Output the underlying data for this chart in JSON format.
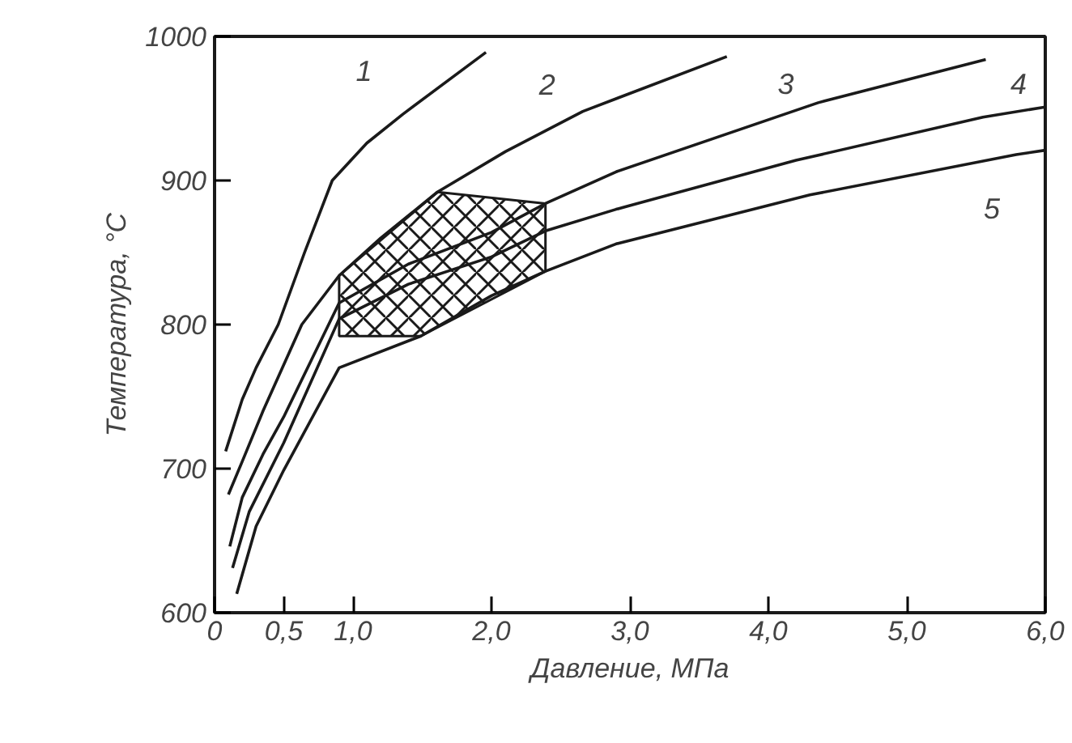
{
  "chart_data": {
    "type": "line",
    "xlabel": "Давление, МПа",
    "ylabel": "Температура, °C",
    "xlim": [
      0,
      6.0
    ],
    "ylim": [
      600,
      1000
    ],
    "xticks": [
      {
        "value": 0,
        "label": "0"
      },
      {
        "value": 0.5,
        "label": "0,5"
      },
      {
        "value": 1.0,
        "label": "1,0"
      },
      {
        "value": 2.0,
        "label": "2,0"
      },
      {
        "value": 3.0,
        "label": "3,0"
      },
      {
        "value": 4.0,
        "label": "4,0"
      },
      {
        "value": 5.0,
        "label": "5,0"
      },
      {
        "value": 6.0,
        "label": "6,0"
      }
    ],
    "yticks": [
      600,
      700,
      800,
      900,
      1000
    ],
    "grid": false,
    "marker": "none",
    "line_style": "solid",
    "series": [
      {
        "color": "#1a1a1a",
        "x": [
          0.08,
          0.2,
          0.3,
          0.46,
          0.65,
          0.85,
          1.1,
          1.36,
          1.96
        ],
        "values": [
          712,
          748,
          770,
          800,
          850,
          900,
          926,
          946,
          989
        ]
      },
      {
        "color": "#1a1a1a",
        "x": [
          0.1,
          0.2,
          0.35,
          0.63,
          0.9,
          1.2,
          1.61,
          2.1,
          2.66,
          3.7
        ],
        "values": [
          682,
          705,
          740,
          800,
          834,
          860,
          892,
          920,
          948,
          986
        ]
      },
      {
        "color": "#1a1a1a",
        "x": [
          0.11,
          0.2,
          0.35,
          0.5,
          0.9,
          1.4,
          2.0,
          2.39,
          2.9,
          4.36,
          5.57
        ],
        "values": [
          646,
          680,
          710,
          736,
          815,
          842,
          864,
          884,
          906,
          954,
          984
        ]
      },
      {
        "color": "#1a1a1a",
        "x": [
          0.13,
          0.25,
          0.5,
          0.9,
          1.4,
          2.0,
          2.39,
          2.9,
          4.2,
          5.55,
          6.0
        ],
        "values": [
          631,
          670,
          718,
          804,
          828,
          847,
          865,
          880,
          914,
          944,
          951
        ]
      },
      {
        "color": "#1a1a1a",
        "x": [
          0.16,
          0.3,
          0.5,
          0.9,
          1.49,
          2.0,
          2.39,
          2.9,
          4.3,
          5.79,
          6.0
        ],
        "values": [
          613,
          660,
          699,
          770,
          792,
          820,
          837,
          856,
          890,
          918,
          921
        ]
      },
      {
        "type": "area",
        "color": "#1a1a1a",
        "x": [
          0.9,
          0.9,
          1.61,
          2.39,
          2.39,
          1.49
        ],
        "values": [
          792,
          834,
          892,
          884,
          837,
          792
        ]
      }
    ],
    "annotations": [
      {
        "text": "1",
        "x": 1.36,
        "y": 946
      },
      {
        "text": "2",
        "x": 2.66,
        "y": 948
      },
      {
        "text": "3",
        "x": 4.36,
        "y": 954
      },
      {
        "text": "4",
        "x": 5.55,
        "y": 944
      },
      {
        "text": "5",
        "x": 5.79,
        "y": 918
      }
    ]
  }
}
